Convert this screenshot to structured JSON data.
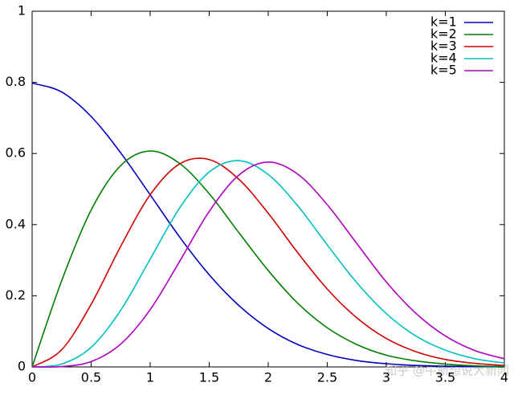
{
  "chart_data": {
    "type": "line",
    "x": [
      0,
      0.25,
      0.5,
      0.75,
      1,
      1.25,
      1.5,
      1.75,
      2,
      2.25,
      2.5,
      2.75,
      3,
      3.25,
      3.5,
      3.75,
      4
    ],
    "series": [
      {
        "name": "k=1",
        "color": "#0000c0",
        "values": [
          0.798,
          0.773,
          0.704,
          0.602,
          0.484,
          0.365,
          0.259,
          0.173,
          0.108,
          0.063,
          0.035,
          0.018,
          0.009,
          0.004,
          0.002,
          0.001,
          0.0
        ]
      },
      {
        "name": "k=2",
        "color": "#008000",
        "values": [
          0,
          0.242,
          0.441,
          0.566,
          0.607,
          0.572,
          0.487,
          0.378,
          0.271,
          0.179,
          0.11,
          0.063,
          0.033,
          0.017,
          0.008,
          0.003,
          0.001
        ]
      },
      {
        "name": "k=3",
        "color": "#d00000",
        "values": [
          0,
          0.048,
          0.176,
          0.339,
          0.484,
          0.571,
          0.583,
          0.528,
          0.432,
          0.321,
          0.219,
          0.138,
          0.08,
          0.043,
          0.021,
          0.01,
          0.004
        ]
      },
      {
        "name": "k=4",
        "color": "#00c0c0",
        "values": [
          0,
          0.008,
          0.055,
          0.159,
          0.303,
          0.447,
          0.548,
          0.58,
          0.541,
          0.453,
          0.343,
          0.237,
          0.15,
          0.087,
          0.047,
          0.023,
          0.011
        ]
      },
      {
        "name": "k=5",
        "color": "#b000c0",
        "values": [
          0,
          0.001,
          0.015,
          0.064,
          0.161,
          0.297,
          0.437,
          0.539,
          0.576,
          0.542,
          0.456,
          0.347,
          0.239,
          0.151,
          0.087,
          0.046,
          0.023
        ]
      }
    ],
    "xlim": [
      0,
      4
    ],
    "xticks": [
      0,
      0.5,
      1,
      1.5,
      2,
      2.5,
      3,
      3.5,
      4
    ],
    "ylim": [
      0,
      1
    ],
    "yticks": [
      0,
      0.2,
      0.4,
      0.6,
      0.8,
      1
    ],
    "legend": "upper right",
    "watermark": "知乎 @牛斯想说大新闻"
  }
}
